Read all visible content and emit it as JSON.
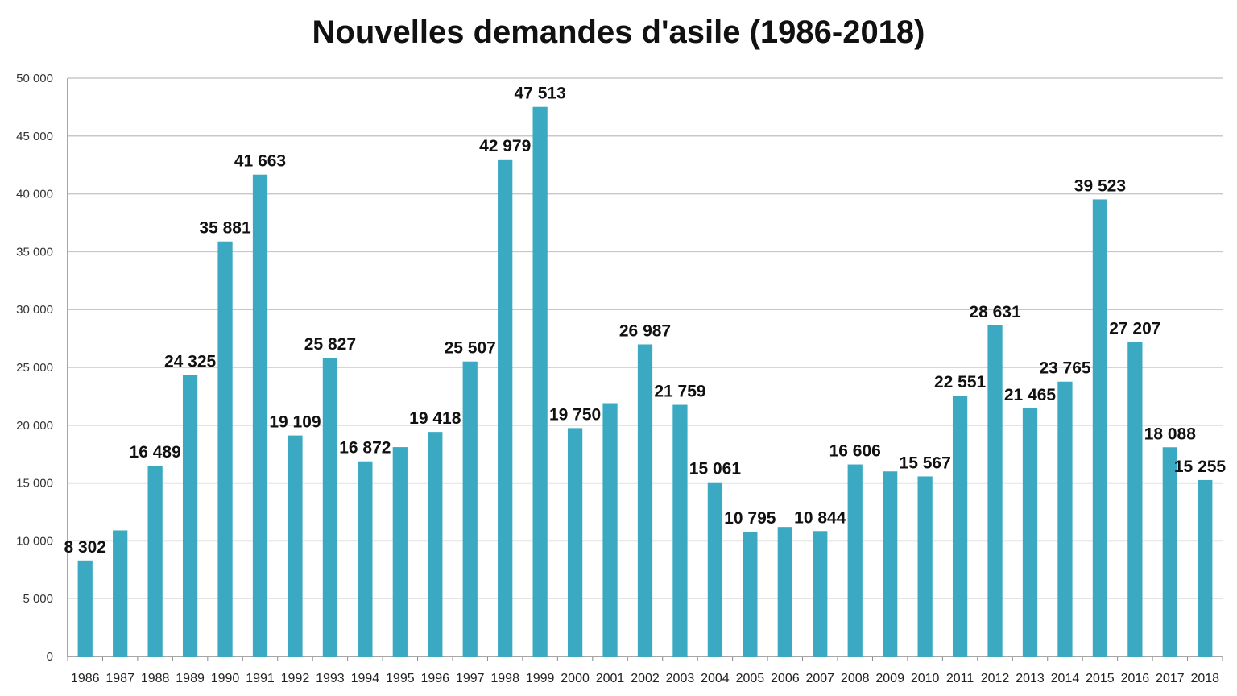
{
  "chart_data": {
    "type": "bar",
    "title": "Nouvelles demandes d'asile (1986-2018)",
    "xlabel": "",
    "ylabel": "",
    "ylim": [
      0,
      50000
    ],
    "y_ticks": [
      "0",
      "5 000",
      "10 000",
      "15 000",
      "20 000",
      "25 000",
      "30 000",
      "35 000",
      "40 000",
      "45 000",
      "50 000"
    ],
    "y_tick_values": [
      0,
      5000,
      10000,
      15000,
      20000,
      25000,
      30000,
      35000,
      40000,
      45000,
      50000
    ],
    "grid": true,
    "legend": "none",
    "bar_color": "#3aa9c1",
    "categories": [
      "1986",
      "1987",
      "1988",
      "1989",
      "1990",
      "1991",
      "1992",
      "1993",
      "1994",
      "1995",
      "1996",
      "1997",
      "1998",
      "1999",
      "2000",
      "2001",
      "2002",
      "2003",
      "2004",
      "2005",
      "2006",
      "2007",
      "2008",
      "2009",
      "2010",
      "2011",
      "2012",
      "2013",
      "2014",
      "2015",
      "2016",
      "2017",
      "2018"
    ],
    "values": [
      8302,
      10900,
      16489,
      24325,
      35881,
      41663,
      19109,
      25827,
      16872,
      18100,
      19418,
      25507,
      42979,
      47513,
      19750,
      21900,
      26987,
      21759,
      15061,
      10795,
      11200,
      10844,
      16606,
      16000,
      15567,
      22551,
      28631,
      21465,
      23765,
      39523,
      27207,
      18088,
      15255
    ],
    "data_labels": [
      "8 302",
      "",
      "16 489",
      "24 325",
      "35 881",
      "41 663",
      "19 109",
      "25 827",
      "16 872",
      "",
      "19 418",
      "25 507",
      "42 979",
      "47 513",
      "19 750",
      "",
      "26 987",
      "21 759",
      "15 061",
      "10 795",
      "",
      "10 844",
      "16 606",
      "",
      "15 567",
      "22 551",
      "28 631",
      "21 465",
      "23 765",
      "39 523",
      "27 207",
      "18 088",
      "15 255"
    ]
  }
}
